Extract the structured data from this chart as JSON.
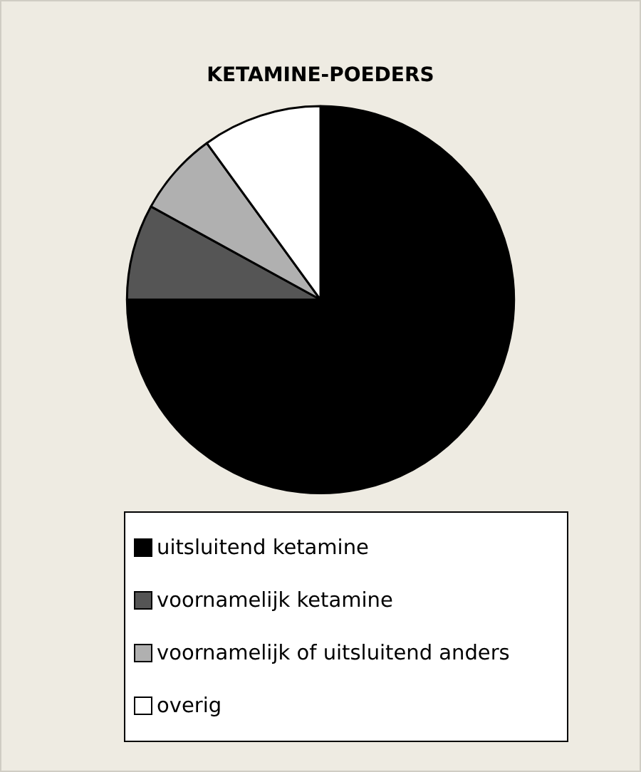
{
  "chart_data": {
    "type": "pie",
    "title": "KETAMINE-POEDERS",
    "categories": [
      "uitsluitend ketamine",
      "voornamelijk ketamine",
      "voornamelijk of uitsluitend anders",
      "overig"
    ],
    "values": [
      75,
      8,
      7,
      10
    ],
    "colors": [
      "#000000",
      "#555555",
      "#b0b0b0",
      "#ffffff"
    ],
    "legend": "bottom"
  }
}
